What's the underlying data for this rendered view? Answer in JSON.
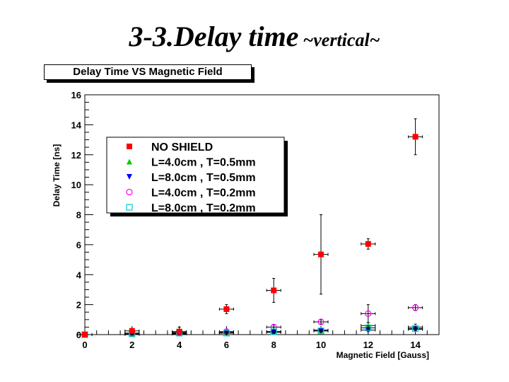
{
  "slide": {
    "title": "3-3.Delay time",
    "subtitle": "~vertical~"
  },
  "colors": {
    "no_shield": "#ff0000",
    "l4_t05": "#00cc00",
    "l8_t05": "#0000ff",
    "l4_t02": "#ff00ff",
    "l8_t02": "#00cccc"
  },
  "chart_data": {
    "type": "scatter",
    "title": "Delay Time VS Magnetic Field",
    "xlabel": "Magnetic Field [Gauss]",
    "ylabel": "Delay Time [ns]",
    "xlim": [
      0,
      15
    ],
    "ylim": [
      0,
      16
    ],
    "x_ticks": [
      0,
      2,
      4,
      6,
      8,
      10,
      12,
      14
    ],
    "y_ticks": [
      0,
      2,
      4,
      6,
      8,
      10,
      12,
      14,
      16
    ],
    "grid": false,
    "legend_position": "upper-left",
    "series": [
      {
        "name": "NO SHIELD",
        "marker": "square",
        "color": "#ff0000",
        "x": [
          0,
          2,
          4,
          6,
          8,
          10,
          12,
          14
        ],
        "y": [
          0,
          0.25,
          0.2,
          1.7,
          2.95,
          5.35,
          6.05,
          13.2
        ],
        "yerr": [
          0,
          0.1,
          0.3,
          0.3,
          0.8,
          2.65,
          0.35,
          1.2
        ],
        "xerr": [
          0.3,
          0.3,
          0.3,
          0.3,
          0.3,
          0.3,
          0.3,
          0.3
        ]
      },
      {
        "name": "L=4.0cm , T=0.5mm",
        "marker": "triangle-up",
        "color": "#00cc00",
        "x": [
          0,
          2,
          4,
          6,
          8,
          10,
          12,
          14
        ],
        "y": [
          0,
          0.05,
          0.1,
          0.15,
          0.2,
          0.3,
          0.6,
          0.5
        ],
        "yerr": [
          0,
          0.05,
          0.1,
          0.1,
          0.1,
          0.1,
          0.2,
          0.2
        ],
        "xerr": [
          0.3,
          0.3,
          0.3,
          0.3,
          0.3,
          0.3,
          0.3,
          0.3
        ]
      },
      {
        "name": "L=8.0cm , T=0.5mm",
        "marker": "triangle-down",
        "color": "#0000ff",
        "x": [
          0,
          2,
          4,
          6,
          8,
          10,
          12,
          14
        ],
        "y": [
          0,
          0.02,
          0.05,
          0.1,
          0.15,
          0.25,
          0.3,
          0.35
        ],
        "yerr": [
          0,
          0.05,
          0.05,
          0.1,
          0.1,
          0.1,
          0.1,
          0.1
        ],
        "xerr": [
          0.3,
          0.3,
          0.3,
          0.3,
          0.3,
          0.3,
          0.3,
          0.3
        ]
      },
      {
        "name": "L=4.0cm , T=0.2mm",
        "marker": "circle-open",
        "color": "#ff00ff",
        "x": [
          0,
          2,
          4,
          6,
          8,
          10,
          12,
          14
        ],
        "y": [
          0,
          0.1,
          0.15,
          0.2,
          0.5,
          0.85,
          1.4,
          1.8
        ],
        "yerr": [
          0,
          0.05,
          0.1,
          0.1,
          0.15,
          0.15,
          0.6,
          0.2
        ],
        "xerr": [
          0.3,
          0.3,
          0.3,
          0.3,
          0.3,
          0.3,
          0.3,
          0.3
        ]
      },
      {
        "name": "L=8.0cm , T=0.2mm",
        "marker": "square-open",
        "color": "#00cccc",
        "x": [
          0,
          2,
          4,
          6,
          8,
          10,
          12,
          14
        ],
        "y": [
          0,
          0.05,
          0.1,
          0.1,
          0.2,
          0.25,
          0.45,
          0.4
        ],
        "yerr": [
          0,
          0.05,
          0.05,
          0.1,
          0.1,
          0.1,
          0.15,
          0.15
        ],
        "xerr": [
          0.3,
          0.3,
          0.3,
          0.3,
          0.3,
          0.3,
          0.3,
          0.3
        ]
      }
    ]
  }
}
